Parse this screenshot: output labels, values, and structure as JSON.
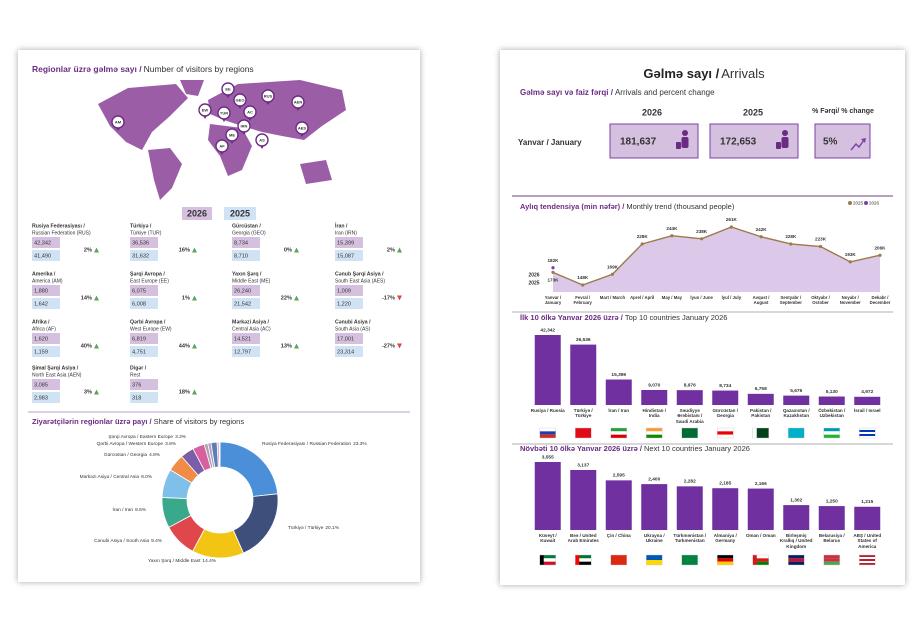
{
  "regions_panel": {
    "title_bold": "Regionlar üzrə gəlmə sayı /",
    "title": "Number of visitors by regions",
    "year_current": "2026",
    "year_previous": "2025",
    "map_pins": [
      "AM",
      "EW",
      "EE",
      "RUS",
      "AC",
      "AEN",
      "TUR",
      "GEO",
      "IRN",
      "ME",
      "AF",
      "AS",
      "AES"
    ],
    "rows": [
      {
        "name": "Rusiya Federasiyası /",
        "sub": "Russian Federation (RUS)",
        "current": "42,342",
        "previous": "41,490",
        "change": "2%",
        "trend": "up"
      },
      {
        "name": "Türkiyə /",
        "sub": "Türkiye (TUR)",
        "current": "36,536",
        "previous": "31,632",
        "change": "16%",
        "trend": "up"
      },
      {
        "name": "Gürcüstan /",
        "sub": "Georgia (GEO)",
        "current": "8,734",
        "previous": "8,710",
        "change": "0%",
        "trend": "up"
      },
      {
        "name": "İran /",
        "sub": "Iran (IRN)",
        "current": "15,399",
        "previous": "15,087",
        "change": "2%",
        "trend": "up"
      },
      {
        "name": "Amerika /",
        "sub": "America (AM)",
        "current": "1,880",
        "previous": "1,642",
        "change": "14%",
        "trend": "up"
      },
      {
        "name": "Şərqi Avropa /",
        "sub": "East Europe (EE)",
        "current": "6,075",
        "previous": "6,008",
        "change": "1%",
        "trend": "up"
      },
      {
        "name": "Yaxın Şərq /",
        "sub": "Middle East (ME)",
        "current": "26,240",
        "previous": "21,542",
        "change": "22%",
        "trend": "up"
      },
      {
        "name": "Cənub Şərqi Asiya /",
        "sub": "South East Asia (AES)",
        "current": "1,009",
        "previous": "1,220",
        "change": "-17%",
        "trend": "down"
      },
      {
        "name": "Afrika /",
        "sub": "Africa (AF)",
        "current": "1,620",
        "previous": "1,159",
        "change": "40%",
        "trend": "up"
      },
      {
        "name": "Qərbi Avropa /",
        "sub": "West Europe (EW)",
        "current": "6,819",
        "previous": "4,751",
        "change": "44%",
        "trend": "up"
      },
      {
        "name": "Mərkəzi Asiya /",
        "sub": "Central Asia (AC)",
        "current": "14,521",
        "previous": "12,797",
        "change": "13%",
        "trend": "up"
      },
      {
        "name": "Cənubi Asiya /",
        "sub": "South Asia (AS)",
        "current": "17,001",
        "previous": "23,314",
        "change": "-27%",
        "trend": "down"
      },
      {
        "name": "Şimal Şərqi Asiya /",
        "sub": "North East Asia (AEN)",
        "current": "3,085",
        "previous": "2,983",
        "change": "3%",
        "trend": "up"
      },
      {
        "name": "Digər /",
        "sub": "Rest",
        "current": "376",
        "previous": "318",
        "change": "18%",
        "trend": "up"
      }
    ]
  },
  "arrivals_panel": {
    "title_bold": "Gəlmə sayı /",
    "title": "Arrivals",
    "subtitle_bold": "Gəlmə sayı və faiz fərqi /",
    "subtitle": "Arrivals and percent change",
    "col_current": "2026",
    "col_previous": "2025",
    "col_change": "% Fərqi/ % change",
    "row_label": "Yanvar / January",
    "current": "181,637",
    "previous": "172,653",
    "change": "5%"
  },
  "chart_data": [
    {
      "type": "pie",
      "donut": true,
      "title_bold": "Ziyarətçilərin regionlar üzrə payı /",
      "title": "Share of visitors by regions",
      "categories": [
        "Rusiya Federasiyası / Russian Federation",
        "Türkiyə / Türkiye",
        "Yaxın Şərq / Middle East",
        "Cənubi Asiya / South Asia",
        "İran / Iran",
        "Mərkəzi Asiya / Central Asia",
        "Gürcüstan / Georgia",
        "Qərbi Avropa / Western Europe",
        "Şərqi Avropa / Eastern Europe",
        null,
        null,
        null,
        null,
        null
      ],
      "values": [
        23.3,
        20.1,
        14.4,
        9.4,
        8.5,
        8.0,
        4.8,
        3.8,
        3.3,
        1.0,
        0.9,
        1.7,
        0.6,
        0.2
      ],
      "value_labels": [
        "23.3%",
        "20.1%",
        "14.4%",
        "9.4%",
        "8.5%",
        "8.0%",
        "4.8%",
        "3.8%",
        "3.3%",
        null,
        null,
        null,
        null,
        null
      ],
      "colors": [
        "#4a8fd8",
        "#3e4f7c",
        "#f2c515",
        "#e0474c",
        "#3aa88a",
        "#7fc0ea",
        "#f08c45",
        "#7b5ea7",
        "#d85fa0",
        "#a7a7a7",
        "#b79ad0",
        "#5b7fb2",
        "#e9a7c6",
        "#777777"
      ]
    },
    {
      "type": "line",
      "title_bold": "Aylıq tendensiya (min nəfər) /",
      "title": "Monthly trend (thousand people)",
      "categories": [
        "Yanvar / January",
        "Fevral / February",
        "Mart / March",
        "Aprel / April",
        "May / May",
        "İyun / June",
        "İyul / July",
        "Avqust / August",
        "Sentyabr / September",
        "Oktyabr / October",
        "Noyabr / November",
        "Dekabr / December"
      ],
      "series": [
        {
          "name": "2025",
          "color": "#9c7a4a",
          "fill": "#dcc8e8",
          "values": [
            172.653,
            148,
            169,
            228,
            244,
            238,
            261,
            242,
            228,
            223,
            193,
            206
          ],
          "value_labels": [
            "173K",
            "148K",
            "169K",
            "228K",
            "244K",
            "238K",
            "261K",
            "242K",
            "228K",
            "223K",
            "193K",
            "206K"
          ]
        },
        {
          "name": "2026",
          "color": "#7b3fa8",
          "values": [
            181.637,
            null,
            null,
            null,
            null,
            null,
            null,
            null,
            null,
            null,
            null,
            null
          ],
          "value_labels": [
            "182K",
            null,
            null,
            null,
            null,
            null,
            null,
            null,
            null,
            null,
            null,
            null
          ]
        }
      ]
    },
    {
      "type": "bar",
      "title_bold": "İlk 10 ölkə Yanvar 2026 üzrə /",
      "title": "Top 10 countries January 2026",
      "categories": [
        "Rusiya / Russia",
        "Türkiyə / Türkiye",
        "İran / Iran",
        "Hindistan / India",
        "Səudiyyə Ərəbistanı / Saudi Arabia",
        "Gürcüstan / Georgia",
        "Pakistan / Pakistan",
        "Qazaxıstan / Kazakhstan",
        "Özbəkistan / Uzbekistan",
        "İsrail / Israel"
      ],
      "values": [
        42342,
        36536,
        15399,
        9070,
        8976,
        8734,
        6758,
        5676,
        5130,
        4972
      ],
      "value_labels": [
        "42,342",
        "36,536",
        "15,399",
        "9,070",
        "8,976",
        "8,734",
        "6,758",
        "5,676",
        "5,130",
        "4,972"
      ],
      "color": "#7030a0"
    },
    {
      "type": "bar",
      "title_bold": "Növbəti 10 ölkə Yanvar 2026 üzrə /",
      "title": "Next 10 countries January 2026",
      "categories": [
        "Küveyt / Kuwait",
        "Bəə / United Arab Emirates",
        "Çin / China",
        "Ukrayna / Ukraine",
        "Türkmənistan / Turkmenistan",
        "Almaniya / Germany",
        "Oman / Oman",
        "Birləşmiş Krallıq / United Kingdom",
        "Belarusiya / Belarus",
        "ABŞ / United States of America"
      ],
      "values": [
        3555,
        3137,
        2595,
        2400,
        2282,
        2185,
        2166,
        1302,
        1250,
        1215
      ],
      "value_labels": [
        "3,555",
        "3,137",
        "2,595",
        "2,400",
        "2,282",
        "2,185",
        "2,166",
        "1,302",
        "1,250",
        "1,215"
      ],
      "color": "#7030a0"
    }
  ]
}
